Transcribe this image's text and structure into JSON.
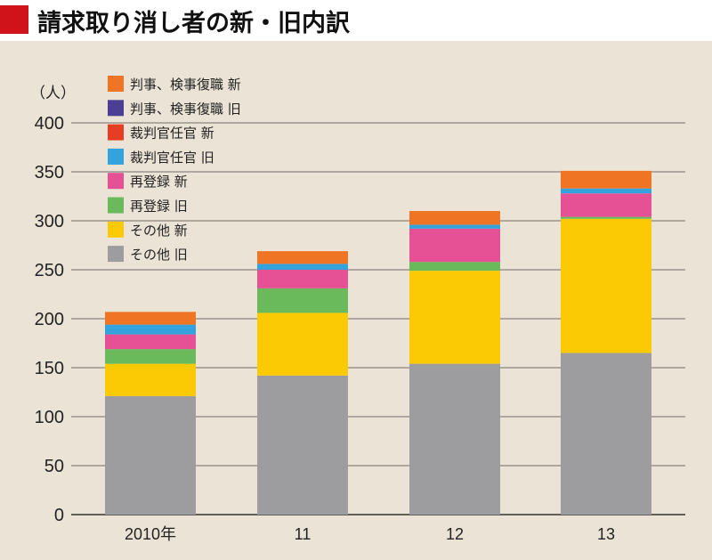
{
  "chart_data": {
    "type": "bar",
    "stacked": true,
    "title": "請求取り消し者の新・旧内訳",
    "ylabel": "（人）",
    "xlabel": "",
    "ylim": [
      0,
      400
    ],
    "yticks": [
      0,
      50,
      100,
      150,
      200,
      250,
      300,
      350,
      400
    ],
    "grid": true,
    "legend_position": "top-left",
    "categories": [
      "2010年",
      "11",
      "12",
      "13"
    ],
    "series": [
      {
        "name": "その他 旧",
        "color": "#9d9d9f",
        "values": [
          121,
          142,
          154,
          165
        ]
      },
      {
        "name": "その他 新",
        "color": "#fbca05",
        "values": [
          33,
          64,
          95,
          137
        ]
      },
      {
        "name": "再登録 旧",
        "color": "#6ab95a",
        "values": [
          15,
          25,
          9,
          2
        ]
      },
      {
        "name": "再登録 新",
        "color": "#e65095",
        "values": [
          15,
          19,
          34,
          24
        ]
      },
      {
        "name": "裁判官任官 旧",
        "color": "#33a2dd",
        "values": [
          10,
          6,
          4,
          5
        ]
      },
      {
        "name": "裁判官任官 新",
        "color": "#e83d25",
        "values": [
          0,
          0,
          0,
          0
        ]
      },
      {
        "name": "判事、検事復職 旧",
        "color": "#4b3f95",
        "values": [
          0,
          0,
          0,
          0
        ]
      },
      {
        "name": "判事、検事復職 新",
        "color": "#ef7423",
        "values": [
          13,
          13,
          14,
          18
        ]
      }
    ]
  }
}
